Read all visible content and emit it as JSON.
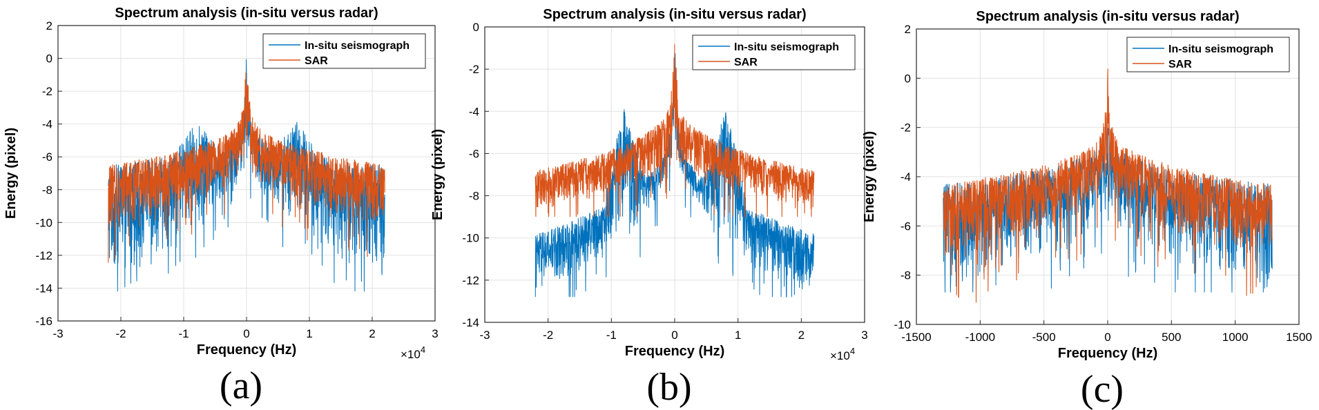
{
  "chart_data": [
    {
      "type": "line",
      "title": "Spectrum analysis (in-situ versus radar)",
      "xlabel": "Frequency (Hz)",
      "ylabel": "Energy (pixel)",
      "xlim": [
        -3,
        3
      ],
      "ylim": [
        -16,
        2
      ],
      "xticks": [
        "-3",
        "-2",
        "-1",
        "0",
        "1",
        "2",
        "3"
      ],
      "yticks": [
        "2",
        "0",
        "-2",
        "-4",
        "-6",
        "-8",
        "-10",
        "-12",
        "-14",
        "-16"
      ],
      "x_multiplier": "×10",
      "x_multiplier_exp": "4",
      "grid": true,
      "legend_position": "top-right",
      "panel_label": "(a)",
      "x_range_data": [
        -2.2,
        2.2
      ],
      "series": [
        {
          "name": "In-situ seismograph",
          "color": "#0072BD",
          "profile": {
            "peak": 0.5,
            "center_band": [
              -5.0,
              -3.5
            ],
            "side_peaks_at": [
              -0.8,
              0.8
            ],
            "side_peak_top": -3.8,
            "edge_band": [
              -13.5,
              -6.5
            ],
            "min": -14.2
          }
        },
        {
          "name": "SAR",
          "color": "#D95319",
          "profile": {
            "peak": 0.5,
            "center_band": [
              -6.0,
              -2.5
            ],
            "edge_band": [
              -10.5,
              -6.5
            ],
            "min": -13.0
          }
        }
      ]
    },
    {
      "type": "line",
      "title": "Spectrum analysis (in-situ versus radar)",
      "xlabel": "Frequency (Hz)",
      "ylabel": "Energy (pixel)",
      "xlim": [
        -3,
        3
      ],
      "ylim": [
        -14,
        0
      ],
      "xticks": [
        "-3",
        "-2",
        "-1",
        "0",
        "1",
        "2",
        "3"
      ],
      "yticks": [
        "0",
        "-2",
        "-4",
        "-6",
        "-8",
        "-10",
        "-12",
        "-14"
      ],
      "x_multiplier": "×10",
      "x_multiplier_exp": "4",
      "grid": true,
      "legend_position": "top-right",
      "panel_label": "(b)",
      "x_range_data": [
        -2.2,
        2.2
      ],
      "series": [
        {
          "name": "In-situ seismograph",
          "color": "#0072BD",
          "profile": {
            "peak": -0.3,
            "center_band": [
              -5.0,
              -3.5
            ],
            "side_peaks_at": [
              -0.8,
              0.8
            ],
            "side_peak_top": -3.8,
            "edge_band": [
              -12.8,
              -9.8
            ],
            "min": -12.8
          }
        },
        {
          "name": "SAR",
          "color": "#D95319",
          "profile": {
            "peak": -0.3,
            "center_band": [
              -6.0,
              -2.6
            ],
            "edge_band": [
              -8.7,
              -6.8
            ],
            "min": -9.0
          }
        }
      ]
    },
    {
      "type": "line",
      "title": "Spectrum analysis (in-situ versus radar)",
      "xlabel": "Frequency (Hz)",
      "ylabel": "Energy (pixel)",
      "xlim": [
        -1500,
        1500
      ],
      "ylim": [
        -10,
        2
      ],
      "xticks": [
        "-1500",
        "-1000",
        "-500",
        "0",
        "500",
        "1000",
        "1500"
      ],
      "yticks": [
        "2",
        "0",
        "-2",
        "-4",
        "-6",
        "-8",
        "-10"
      ],
      "grid": true,
      "legend_position": "top-right",
      "panel_label": "(c)",
      "x_range_data": [
        -1290,
        1290
      ],
      "series": [
        {
          "name": "In-situ seismograph",
          "color": "#0072BD",
          "profile": {
            "peak": -1.8,
            "center_band": [
              -5.0,
              -2.0
            ],
            "edge_band": [
              -8.5,
              -4.3
            ],
            "min": -8.7
          }
        },
        {
          "name": "SAR",
          "color": "#D95319",
          "profile": {
            "peak": 0.5,
            "center_band": [
              -4.0,
              -1.5
            ],
            "edge_band": [
              -7.5,
              -4.3
            ],
            "min": -9.2
          }
        }
      ]
    }
  ]
}
